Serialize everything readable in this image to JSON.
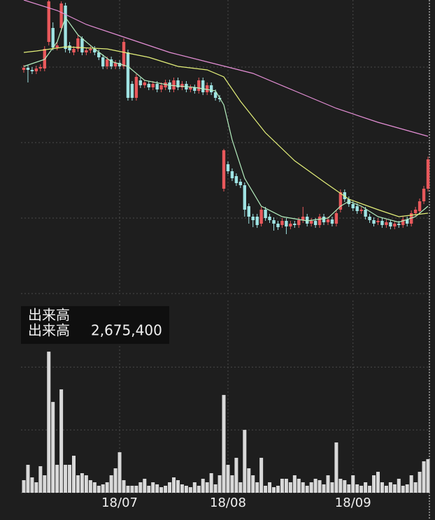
{
  "chart_data": [
    {
      "type": "candlestick",
      "ylim": [
        580,
        1000
      ],
      "yticks": [
        580,
        688,
        796,
        904
      ],
      "grid": true,
      "up_color": "#e8585b",
      "down_color": "#9fe3e3",
      "open": [
        900,
        903,
        900,
        898,
        902,
        902,
        940,
        960,
        932,
        960,
        992,
        935,
        925,
        930,
        945,
        925,
        928,
        930,
        925,
        918,
        905,
        915,
        905,
        910,
        905,
        925,
        880,
        860,
        885,
        878,
        880,
        875,
        880,
        872,
        875,
        882,
        872,
        885,
        875,
        880,
        872,
        875,
        870,
        885,
        868,
        878,
        868,
        860,
        730,
        765,
        755,
        748,
        740,
        735,
        705,
        690,
        690,
        680,
        700,
        690,
        685,
        680,
        678,
        684,
        676,
        680,
        678,
        685,
        690,
        680,
        684,
        678,
        690,
        682,
        686,
        680,
        700,
        725,
        715,
        708,
        705,
        698,
        700,
        690,
        685,
        682,
        684,
        678,
        682,
        676,
        680,
        678,
        686,
        680,
        695,
        698,
        712,
        730
      ],
      "close": [
        903,
        900,
        898,
        902,
        904,
        930,
        998,
        932,
        935,
        995,
        930,
        928,
        930,
        945,
        925,
        928,
        930,
        925,
        918,
        905,
        915,
        905,
        910,
        905,
        940,
        860,
        860,
        890,
        878,
        882,
        875,
        880,
        872,
        878,
        882,
        872,
        885,
        875,
        880,
        872,
        875,
        870,
        885,
        868,
        878,
        868,
        860,
        858,
        785,
        755,
        745,
        738,
        735,
        700,
        690,
        685,
        678,
        700,
        688,
        685,
        680,
        675,
        684,
        676,
        680,
        678,
        685,
        690,
        680,
        684,
        678,
        690,
        682,
        686,
        680,
        695,
        725,
        715,
        708,
        702,
        698,
        700,
        690,
        685,
        680,
        684,
        678,
        682,
        676,
        680,
        678,
        686,
        680,
        695,
        700,
        712,
        730,
        772
      ],
      "high": [
        907,
        907,
        904,
        906,
        908,
        934,
        1000,
        968,
        940,
        998,
        996,
        940,
        934,
        950,
        948,
        932,
        934,
        934,
        929,
        922,
        919,
        919,
        914,
        914,
        945,
        929,
        884,
        894,
        889,
        886,
        884,
        884,
        884,
        882,
        886,
        886,
        889,
        889,
        884,
        884,
        879,
        879,
        889,
        889,
        882,
        882,
        872,
        864,
        787,
        769,
        759,
        752,
        744,
        739,
        709,
        694,
        694,
        704,
        704,
        694,
        689,
        684,
        688,
        688,
        684,
        684,
        689,
        704,
        694,
        688,
        688,
        694,
        694,
        690,
        690,
        699,
        729,
        729,
        719,
        712,
        709,
        704,
        704,
        694,
        689,
        688,
        688,
        686,
        686,
        684,
        684,
        690,
        690,
        699,
        704,
        716,
        734,
        776
      ],
      "low": [
        896,
        882,
        894,
        894,
        898,
        898,
        935,
        928,
        928,
        955,
        925,
        924,
        921,
        926,
        921,
        921,
        924,
        921,
        914,
        901,
        901,
        901,
        901,
        901,
        901,
        856,
        856,
        856,
        874,
        874,
        871,
        871,
        868,
        868,
        871,
        868,
        868,
        871,
        871,
        868,
        868,
        866,
        866,
        864,
        864,
        864,
        856,
        854,
        726,
        751,
        741,
        734,
        731,
        690,
        680,
        675,
        674,
        676,
        684,
        681,
        670,
        671,
        674,
        665,
        672,
        674,
        674,
        681,
        676,
        676,
        674,
        674,
        678,
        678,
        676,
        676,
        696,
        711,
        704,
        698,
        694,
        694,
        686,
        681,
        676,
        678,
        674,
        674,
        672,
        672,
        674,
        674,
        676,
        676,
        691,
        694,
        708,
        726
      ],
      "series": [
        {
          "color": "#b6f0c0",
          "x": [
            0,
            5,
            8,
            10,
            13,
            17,
            21,
            25,
            29,
            35,
            41,
            46,
            48,
            50,
            53,
            57,
            62,
            68,
            73,
            76,
            78,
            81,
            85,
            90,
            94,
            97
          ],
          "values": [
            905,
            915,
            940,
            975,
            950,
            930,
            912,
            905,
            885,
            878,
            875,
            870,
            850,
            800,
            745,
            705,
            690,
            684,
            688,
            705,
            712,
            705,
            690,
            682,
            690,
            705
          ]
        },
        {
          "color": "#e4f07a",
          "x": [
            0,
            3,
            10,
            20,
            30,
            37,
            44,
            48,
            52,
            58,
            65,
            72,
            78,
            85,
            90,
            97
          ],
          "values": [
            925,
            927,
            933,
            930,
            918,
            905,
            900,
            890,
            855,
            810,
            770,
            740,
            715,
            700,
            690,
            695
          ]
        },
        {
          "color": "#e58fd6",
          "x": [
            0,
            8,
            15,
            25,
            35,
            45,
            55,
            65,
            75,
            85,
            97
          ],
          "values": [
            1000,
            985,
            965,
            945,
            925,
            910,
            895,
            870,
            845,
            825,
            805
          ]
        }
      ]
    },
    {
      "type": "bar",
      "title": "出来高",
      "color": "#d9d9d9",
      "ylim": [
        0,
        15300000
      ],
      "yticks": [
        0,
        5000000,
        10000000
      ],
      "grid": true,
      "categories": [
        null,
        null,
        null,
        null,
        null,
        null,
        null,
        null,
        null,
        null,
        null,
        null,
        null,
        null,
        null,
        null,
        null,
        null,
        null,
        null,
        null,
        null,
        null,
        "18/07",
        null,
        null,
        null,
        null,
        null,
        null,
        null,
        null,
        null,
        null,
        null,
        null,
        null,
        null,
        null,
        null,
        null,
        null,
        null,
        null,
        null,
        null,
        null,
        null,
        null,
        "18/08",
        null,
        null,
        null,
        null,
        null,
        null,
        null,
        null,
        null,
        null,
        null,
        null,
        null,
        null,
        null,
        null,
        null,
        null,
        null,
        null,
        null,
        null,
        null,
        null,
        null,
        null,
        null,
        null,
        null,
        "18/09",
        null,
        null,
        null,
        null,
        null,
        null,
        null,
        null,
        null,
        null,
        null,
        null,
        null,
        null,
        null,
        null,
        null,
        null
      ],
      "values": [
        1000800,
        2224000,
        1223200,
        834000,
        2112800,
        1390000,
        11231200,
        7228000,
        2224000,
        8228800,
        2224000,
        2224000,
        2946800,
        1390000,
        1556800,
        1390000,
        1000800,
        834000,
        556000,
        667200,
        834000,
        1390000,
        1946000,
        3224800,
        1000800,
        556000,
        556000,
        556000,
        834000,
        1112000,
        556000,
        834000,
        667200,
        444800,
        556000,
        834000,
        1223200,
        1000800,
        667200,
        556000,
        444800,
        834000,
        556000,
        1112000,
        834000,
        1556800,
        667200,
        1390000,
        7784000,
        2224000,
        1390000,
        2780000,
        834000,
        5004000,
        1946000,
        1390000,
        834000,
        2780000,
        556000,
        834000,
        444800,
        556000,
        1112000,
        1112000,
        834000,
        1390000,
        1112000,
        834000,
        556000,
        834000,
        1112000,
        1000800,
        667200,
        1390000,
        834000,
        4003200,
        1112000,
        1000800,
        667200,
        1390000,
        667200,
        556000,
        834000,
        556000,
        1390000,
        1668000,
        834000,
        556000,
        834000,
        667200,
        1112000,
        556000,
        667200,
        1390000,
        834000,
        1668000,
        2502000,
        2675400
      ],
      "value_labels": [
        null,
        null,
        null,
        null,
        null,
        null,
        null,
        null,
        null,
        null,
        null,
        null,
        null,
        null,
        null,
        null,
        null,
        null,
        null,
        null,
        null,
        null,
        null,
        null,
        null,
        null,
        null,
        null,
        null,
        null,
        null,
        null,
        null,
        null,
        null,
        null,
        null,
        null,
        null,
        null,
        null,
        null,
        null,
        null,
        null,
        null,
        null,
        null,
        null,
        null,
        null,
        null,
        null,
        null,
        null,
        null,
        null,
        null,
        null,
        null,
        null,
        null,
        null,
        null,
        null,
        null,
        null,
        null,
        null,
        null,
        null,
        null,
        null,
        null,
        null,
        null,
        null,
        null,
        null,
        null,
        null,
        null,
        null,
        null,
        null,
        null,
        null,
        null,
        null,
        null,
        null,
        null,
        null,
        null,
        null,
        null,
        null,
        "2,675,400"
      ]
    }
  ]
}
